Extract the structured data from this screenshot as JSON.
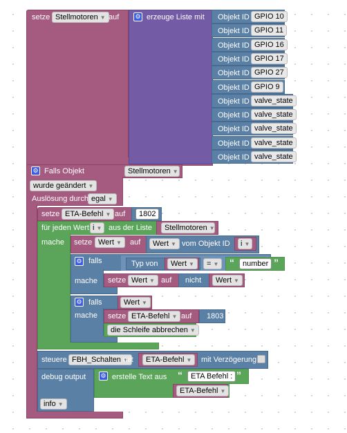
{
  "set_list": {
    "label_set": "setze",
    "var": "Stellmotoren",
    "label_to": "auf",
    "create_list_label": "erzeuge Liste mit",
    "object_id_label": "Objekt ID",
    "items": [
      "GPIO 10",
      "GPIO 11",
      "GPIO 16",
      "GPIO 17",
      "GPIO 27",
      "GPIO 9",
      "valve_state",
      "valve_state",
      "valve_state",
      "valve_state",
      "valve_state"
    ]
  },
  "trigger": {
    "title": "Falls Objekt",
    "object": "Stellmotoren",
    "changed": "wurde geändert",
    "ack_label": "Auslösung durch",
    "ack_value": "egal"
  },
  "set_eta": {
    "label_set": "setze",
    "var": "ETA-Befehl",
    "label_to": "auf",
    "value": "1802"
  },
  "foreach": {
    "label": "für jeden Wert",
    "var": "i",
    "from_list": "aus der Liste",
    "list": "Stellmotoren",
    "do_label": "mache"
  },
  "set_wert": {
    "label_set": "setze",
    "var": "Wert",
    "label_to": "auf",
    "get_label": "Wert",
    "from_object": "vom Objekt ID",
    "obj_var": "i"
  },
  "if1": {
    "label": "falls",
    "typeof_label": "Typ von",
    "var": "Wert",
    "op": "=",
    "string": "number",
    "do_label": "mache",
    "set_label": "setze",
    "set_var": "Wert",
    "to_label": "auf",
    "not_label": "nicht",
    "not_var": "Wert"
  },
  "if2": {
    "label": "falls",
    "var": "Wert",
    "do_label": "mache",
    "set_label": "setze",
    "set_var": "ETA-Befehl",
    "to_label": "auf",
    "value": "1803",
    "break_label": "die Schleife abbrechen"
  },
  "control": {
    "label": "steuere",
    "object": "FBH_Schalten",
    "with_label": "mit",
    "var": "ETA-Befehl",
    "delay_label": "mit Verzögerung"
  },
  "debug": {
    "label": "debug output",
    "create_text": "erstelle Text aus",
    "text1": "ETA Befehl :",
    "var": "ETA-Befehl",
    "level": "info"
  },
  "colors": {
    "variables": "#a55b80",
    "lists": "#745ba5",
    "logic": "#5b80a5",
    "loops": "#5ba55b",
    "field": "#e3e3e3"
  }
}
